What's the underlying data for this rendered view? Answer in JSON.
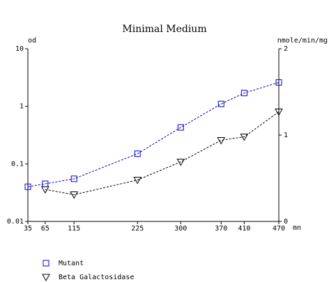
{
  "chart_data": {
    "type": "line",
    "title": "Minimal Medium",
    "x": [
      35,
      65,
      115,
      225,
      300,
      370,
      410,
      470
    ],
    "xlim": [
      35,
      470
    ],
    "xticks": [
      35,
      65,
      115,
      225,
      300,
      370,
      410,
      470
    ],
    "xlabel": "mn",
    "ylabel": "od",
    "ylim": [
      0.01,
      10
    ],
    "yticks": [
      0.01,
      0.1,
      1,
      10
    ],
    "ylog": true,
    "y2label": "nmole/min/mg",
    "y2lim": [
      0,
      2
    ],
    "y2ticks": [
      0,
      1,
      2
    ],
    "series": [
      {
        "name": "Mutant",
        "color": "#0000cc",
        "marker": "square",
        "values": [
          0.04,
          0.045,
          0.055,
          0.15,
          0.43,
          1.1,
          1.7,
          2.6
        ]
      },
      {
        "name": "Beta Galactosidase",
        "color": "#000000",
        "marker": "triangle-down",
        "axis": "y2",
        "values": [
          null,
          0.37,
          0.31,
          0.48,
          0.69,
          0.94,
          0.98,
          1.27
        ]
      }
    ]
  }
}
